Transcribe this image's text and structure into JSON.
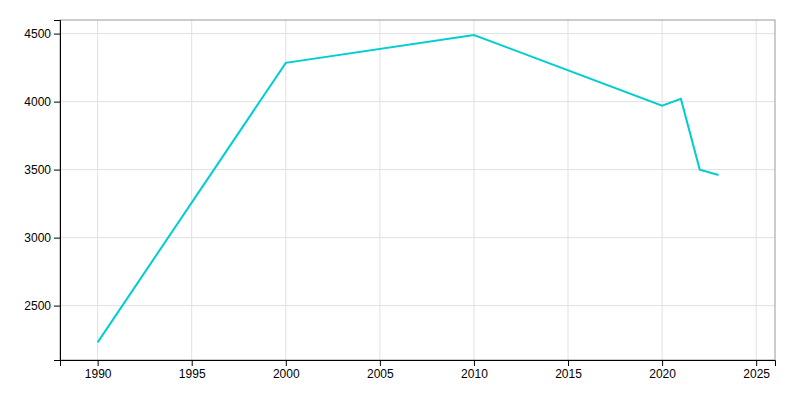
{
  "chart_data": {
    "type": "line",
    "x": [
      1990,
      2000,
      2010,
      2020,
      2021,
      2022,
      2023
    ],
    "values": [
      2230,
      4285,
      4490,
      3970,
      4020,
      3500,
      3460
    ],
    "color": "#00CED1",
    "xlim": [
      1988,
      2026
    ],
    "ylim": [
      2100,
      4600
    ],
    "xticks": [
      1990,
      1995,
      2000,
      2005,
      2010,
      2015,
      2020,
      2025
    ],
    "yticks": [
      2500,
      3000,
      3500,
      4000,
      4500
    ],
    "grid": true
  }
}
